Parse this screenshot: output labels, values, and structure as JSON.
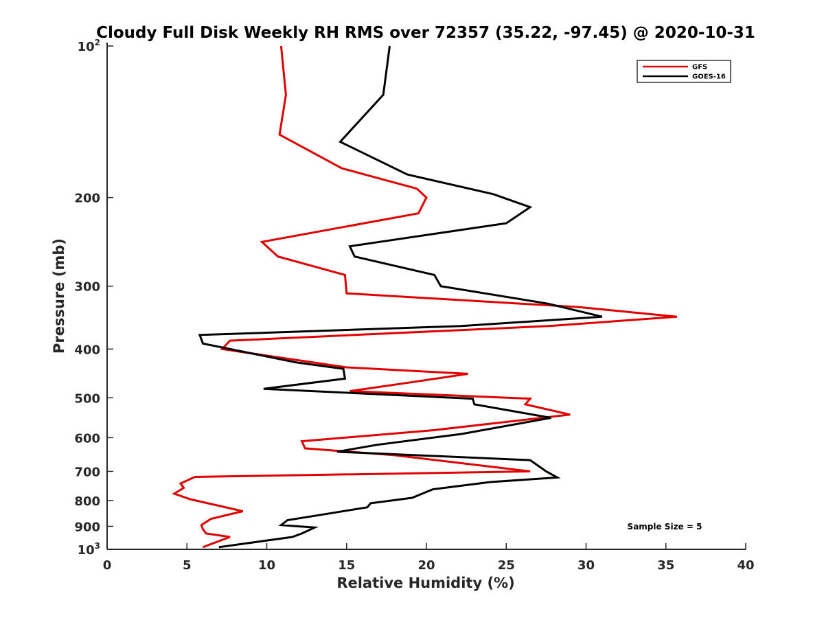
{
  "chart_data": {
    "type": "line",
    "title": "Cloudy Full Disk Weekly RH RMS over 72357 (35.22, -97.45) @ 2020-10-31",
    "xlabel": "Relative Humidity (%)",
    "ylabel": "Pressure (mb)",
    "xlim": [
      0,
      40
    ],
    "ylim": [
      100,
      1000
    ],
    "y_scale": "log",
    "y_reversed": true,
    "grid": false,
    "legend_position": "top-right",
    "x_ticks": [
      "0",
      "5",
      "10",
      "15",
      "20",
      "25",
      "30",
      "35",
      "40"
    ],
    "y_ticks": [
      {
        "value": 100,
        "base": "10",
        "exp": "2"
      },
      {
        "value": 200,
        "label": "200"
      },
      {
        "value": 300,
        "label": "300"
      },
      {
        "value": 400,
        "label": "400"
      },
      {
        "value": 500,
        "label": "500"
      },
      {
        "value": 600,
        "label": "600"
      },
      {
        "value": 700,
        "label": "700"
      },
      {
        "value": 800,
        "label": "800"
      },
      {
        "value": 900,
        "label": "900"
      },
      {
        "value": 1000,
        "base": "10",
        "exp": "3"
      }
    ],
    "annotation": "Sample Size = 5",
    "series": [
      {
        "name": "GFS",
        "color": "#e00000",
        "points": [
          [
            10.9,
            100
          ],
          [
            11.2,
            125
          ],
          [
            10.8,
            150
          ],
          [
            14.7,
            175
          ],
          [
            19.4,
            192
          ],
          [
            20.0,
            200
          ],
          [
            19.5,
            215
          ],
          [
            9.7,
            245
          ],
          [
            10.7,
            262
          ],
          [
            14.9,
            285
          ],
          [
            15.0,
            310
          ],
          [
            29.5,
            330
          ],
          [
            35.7,
            345
          ],
          [
            27.7,
            360
          ],
          [
            7.7,
            385
          ],
          [
            7.2,
            400
          ],
          [
            15.0,
            435
          ],
          [
            22.6,
            448
          ],
          [
            19.2,
            465
          ],
          [
            15.2,
            485
          ],
          [
            26.5,
            502
          ],
          [
            26.2,
            515
          ],
          [
            29.0,
            540
          ],
          [
            20.4,
            580
          ],
          [
            12.2,
            610
          ],
          [
            12.4,
            630
          ],
          [
            18.0,
            650
          ],
          [
            26.5,
            700
          ],
          [
            5.5,
            718
          ],
          [
            4.6,
            740
          ],
          [
            4.8,
            755
          ],
          [
            4.2,
            775
          ],
          [
            5.2,
            795
          ],
          [
            8.5,
            840
          ],
          [
            6.5,
            870
          ],
          [
            5.9,
            895
          ],
          [
            6.0,
            912
          ],
          [
            6.2,
            930
          ],
          [
            7.7,
            945
          ],
          [
            6.0,
            990
          ]
        ]
      },
      {
        "name": "GOES-16",
        "color": "#000000",
        "points": [
          [
            17.7,
            100
          ],
          [
            17.3,
            125
          ],
          [
            14.6,
            155
          ],
          [
            18.8,
            180
          ],
          [
            24.2,
            197
          ],
          [
            26.5,
            209
          ],
          [
            25.0,
            225
          ],
          [
            15.2,
            250
          ],
          [
            15.5,
            262
          ],
          [
            20.5,
            285
          ],
          [
            20.9,
            300
          ],
          [
            27.6,
            325
          ],
          [
            31.0,
            345
          ],
          [
            22.2,
            360
          ],
          [
            5.8,
            375
          ],
          [
            6.0,
            390
          ],
          [
            11.8,
            425
          ],
          [
            14.8,
            438
          ],
          [
            14.9,
            458
          ],
          [
            9.8,
            480
          ],
          [
            22.9,
            502
          ],
          [
            23.0,
            515
          ],
          [
            27.8,
            548
          ],
          [
            22.2,
            590
          ],
          [
            16.9,
            620
          ],
          [
            14.4,
            640
          ],
          [
            26.5,
            665
          ],
          [
            27.5,
            700
          ],
          [
            28.2,
            720
          ],
          [
            24.0,
            735
          ],
          [
            20.4,
            760
          ],
          [
            19.1,
            790
          ],
          [
            16.5,
            810
          ],
          [
            16.3,
            825
          ],
          [
            13.0,
            858
          ],
          [
            11.3,
            875
          ],
          [
            10.9,
            895
          ],
          [
            13.0,
            905
          ],
          [
            12.2,
            930
          ],
          [
            11.6,
            945
          ],
          [
            7.0,
            990
          ]
        ]
      }
    ]
  }
}
